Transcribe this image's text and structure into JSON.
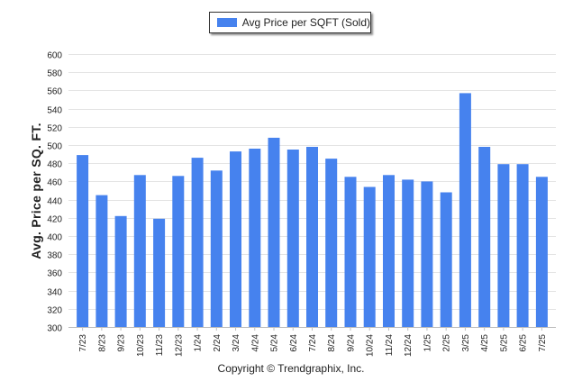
{
  "legend": {
    "label": "Avg Price per SQFT (Sold)"
  },
  "footer": {
    "copyright": "Copyright © Trendgraphix, Inc."
  },
  "colors": {
    "bar": "#4682ee",
    "grid": "#e4e4e4",
    "axis": "#c0c0c0",
    "text": "#222222"
  },
  "chart_data": {
    "type": "bar",
    "categories": [
      "7/23",
      "8/23",
      "9/23",
      "10/23",
      "11/23",
      "12/23",
      "1/24",
      "2/24",
      "3/24",
      "4/24",
      "5/24",
      "6/24",
      "7/24",
      "8/24",
      "9/24",
      "10/24",
      "11/24",
      "12/24",
      "1/25",
      "2/25",
      "3/25",
      "4/25",
      "5/25",
      "6/25",
      "7/25"
    ],
    "series": [
      {
        "name": "Avg Price per SQFT (Sold)",
        "values": [
          489,
          445,
          422,
          467,
          419,
          466,
          486,
          472,
          493,
          496,
          508,
          495,
          498,
          485,
          465,
          454,
          467,
          462,
          460,
          448,
          557,
          498,
          479,
          479,
          465
        ]
      }
    ],
    "xlabel": "",
    "ylabel": "Avg. Price per SQ. FT.",
    "ylim": [
      300,
      600
    ],
    "yticks": [
      300,
      320,
      340,
      360,
      380,
      400,
      420,
      440,
      460,
      480,
      500,
      520,
      540,
      560,
      580,
      600
    ],
    "grid": true,
    "legend_position": "top-center"
  }
}
